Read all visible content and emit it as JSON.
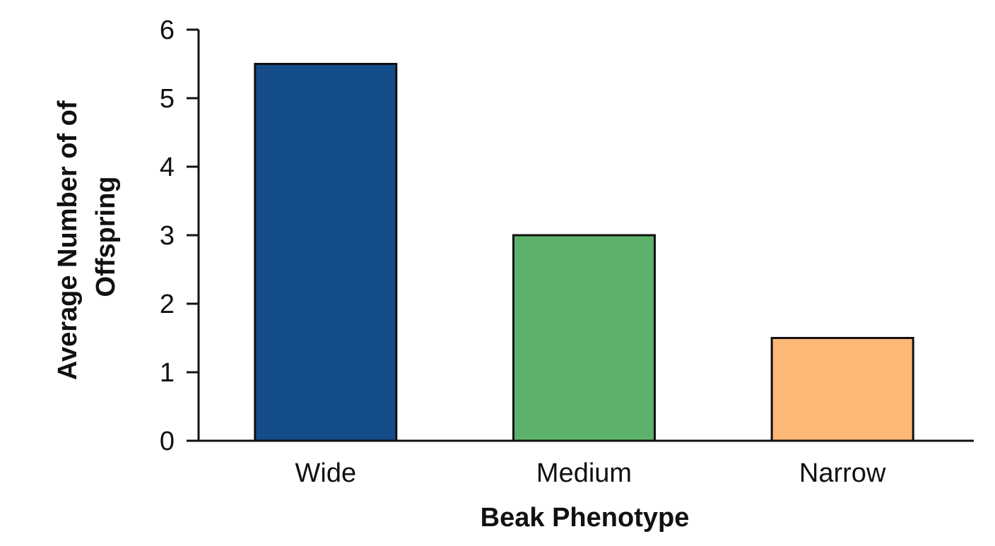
{
  "chart_data": {
    "type": "bar",
    "title": "",
    "xlabel": "Beak Phenotype",
    "ylabel_lines": [
      "Average Number of of",
      "Offspring"
    ],
    "categories": [
      "Wide",
      "Medium",
      "Narrow"
    ],
    "values": [
      5.5,
      3,
      1.5
    ],
    "colors": [
      "#154c8a",
      "#5db26b",
      "#fdb777"
    ],
    "ylim": [
      0,
      6
    ],
    "yticks": [
      0,
      1,
      2,
      3,
      4,
      5,
      6
    ],
    "grid": false,
    "legend": "none"
  }
}
